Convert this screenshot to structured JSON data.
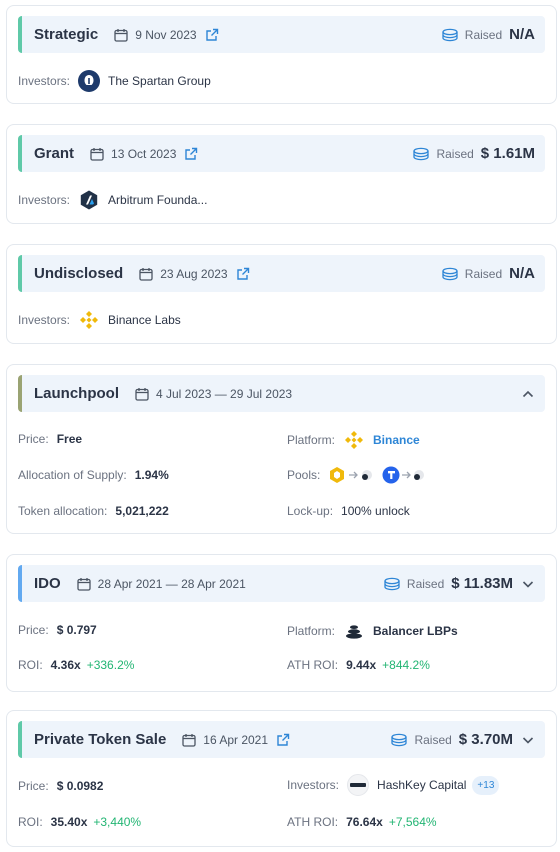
{
  "labels": {
    "investors": "Investors:",
    "raised": "Raised",
    "price": "Price:",
    "platform": "Platform:",
    "allocation_supply": "Allocation of Supply:",
    "pools": "Pools:",
    "token_allocation": "Token allocation:",
    "lockup": "Lock-up:",
    "roi": "ROI:",
    "ath_roi": "ATH ROI:"
  },
  "rounds": [
    {
      "type": "Strategic",
      "date": "9 Nov 2023",
      "amount": "N/A",
      "investors": [
        "The Spartan Group"
      ]
    },
    {
      "type": "Grant",
      "date": "13 Oct 2023",
      "amount": "$ 1.61M",
      "investors": [
        "Arbitrum Founda..."
      ]
    },
    {
      "type": "Undisclosed",
      "date": "23 Aug 2023",
      "amount": "N/A",
      "investors": [
        "Binance Labs"
      ]
    },
    {
      "type": "Launchpool",
      "date": "4 Jul 2023 — 29 Jul 2023",
      "price": "Free",
      "platform": "Binance",
      "allocation_supply": "1.94%",
      "token_allocation": "5,021,222",
      "lockup": "100% unlock"
    },
    {
      "type": "IDO",
      "date": "28 Apr 2021 — 28 Apr 2021",
      "amount": "$ 11.83M",
      "price": "$ 0.797",
      "platform": "Balancer LBPs",
      "roi": "4.36x",
      "roi_change": "+336.2%",
      "ath_roi": "9.44x",
      "ath_roi_change": "+844.2%"
    },
    {
      "type": "Private Token Sale",
      "date": "16 Apr 2021",
      "amount": "$ 3.70M",
      "price": "$ 0.0982",
      "investors": [
        "HashKey Capital"
      ],
      "investors_more": "+13",
      "roi": "35.40x",
      "roi_change": "+3,440%",
      "ath_roi": "76.64x",
      "ath_roi_change": "+7,564%"
    }
  ],
  "icons": {
    "calendar": "calendar-icon",
    "external": "external-link-icon",
    "coins": "coins-icon",
    "chevron_up": "chevron-up-icon",
    "chevron_down": "chevron-down-icon"
  },
  "colors": {
    "accent_green_border": "#5fc9a8",
    "accent_olive_border": "#9aa373",
    "accent_blue_border": "#62a9f0",
    "header_bg": "#eef4fb",
    "positive": "#22b573",
    "link": "#2e86d6",
    "binance": "#f0b90b"
  }
}
